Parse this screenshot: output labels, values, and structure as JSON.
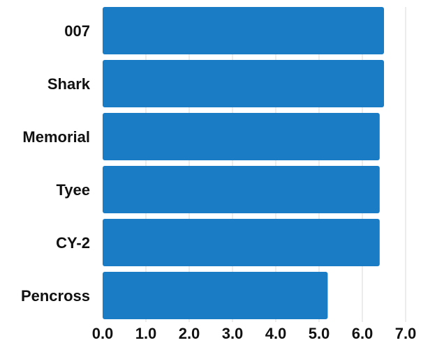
{
  "chart_data": {
    "type": "bar",
    "orientation": "horizontal",
    "categories": [
      "007",
      "Shark",
      "Memorial",
      "Tyee",
      "CY-2",
      "Pencross"
    ],
    "values": [
      6.5,
      6.5,
      6.4,
      6.4,
      6.4,
      5.2
    ],
    "title": "",
    "xlabel": "",
    "ylabel": "",
    "xlim": [
      0,
      7
    ],
    "x_ticks": [
      "0.0",
      "1.0",
      "2.0",
      "3.0",
      "4.0",
      "5.0",
      "6.0",
      "7.0"
    ],
    "grid": "vertical",
    "bar_color": "#1a7cc4"
  }
}
